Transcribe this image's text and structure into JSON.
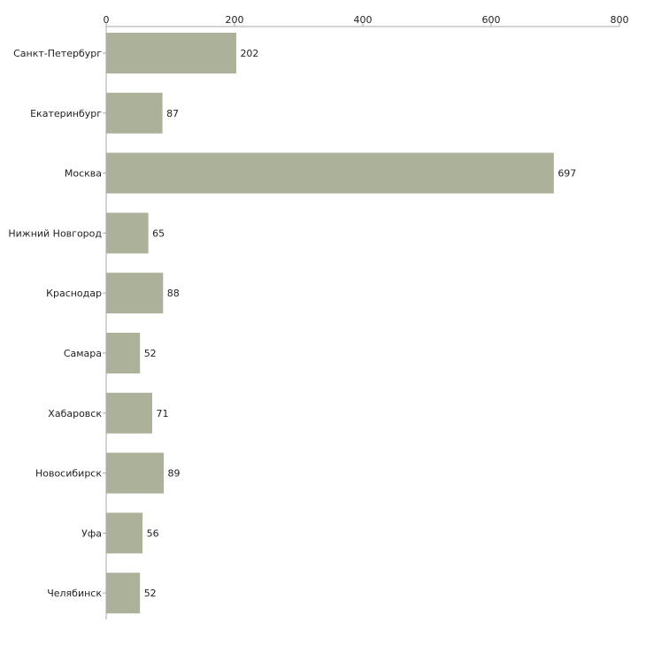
{
  "chart_data": {
    "type": "bar",
    "orientation": "horizontal",
    "categories": [
      "Санкт-Петербург",
      "Екатеринбург",
      "Москва",
      "Нижний Новгород",
      "Краснодар",
      "Самара",
      "Хабаровск",
      "Новосибирск",
      "Уфа",
      "Челябинск"
    ],
    "values": [
      202,
      87,
      697,
      65,
      88,
      52,
      71,
      89,
      56,
      52
    ],
    "xlim": [
      0,
      800
    ],
    "xticks": [
      0,
      200,
      400,
      600,
      800
    ],
    "tick_position": "top",
    "grid": false,
    "legend": "none",
    "bar_color": "#acb199",
    "axis_color": "#aaaaaa"
  }
}
